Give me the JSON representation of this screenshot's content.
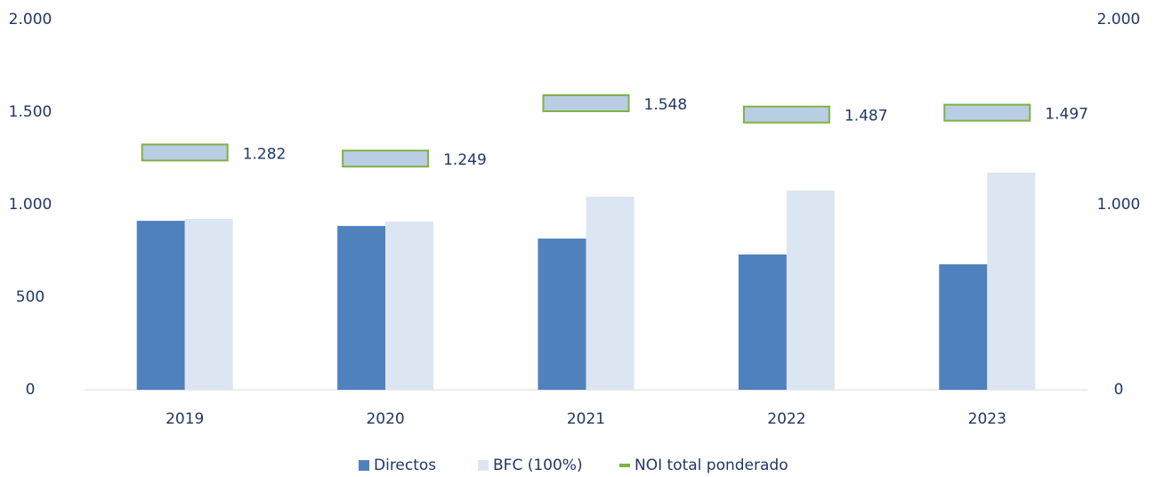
{
  "chart_data": {
    "type": "bar",
    "categories": [
      "2019",
      "2020",
      "2021",
      "2022",
      "2023"
    ],
    "series": [
      {
        "name": "Directos",
        "color": "#4f81bd",
        "values": [
          913,
          885,
          817,
          731,
          678
        ]
      },
      {
        "name": "BFC (100%)",
        "color": "#dce6f2",
        "values": [
          923,
          909,
          1043,
          1077,
          1173
        ]
      },
      {
        "name": "NOI total ponderado",
        "color": "#b9cde5",
        "edge_color": "#7fb241",
        "axis": "y2",
        "marker": "rect",
        "values": [
          1282,
          1249,
          1548,
          1487,
          1497
        ],
        "value_labels": [
          "1.282",
          "1.249",
          "1.548",
          "1.487",
          "1.497"
        ]
      }
    ],
    "ylim": [
      0,
      2000
    ],
    "yticks": [
      0,
      500,
      {
        "value": 1000,
        "label": "1.000"
      },
      {
        "value": 1500,
        "label": "1.500"
      },
      {
        "value": 2000,
        "label": "2.000"
      }
    ],
    "y2lim": [
      0,
      2000
    ],
    "y2ticks": [
      0,
      {
        "value": 1000,
        "label": "1.000"
      },
      {
        "value": 2000,
        "label": "2.000"
      }
    ],
    "legend": "bottom",
    "grid": false
  }
}
